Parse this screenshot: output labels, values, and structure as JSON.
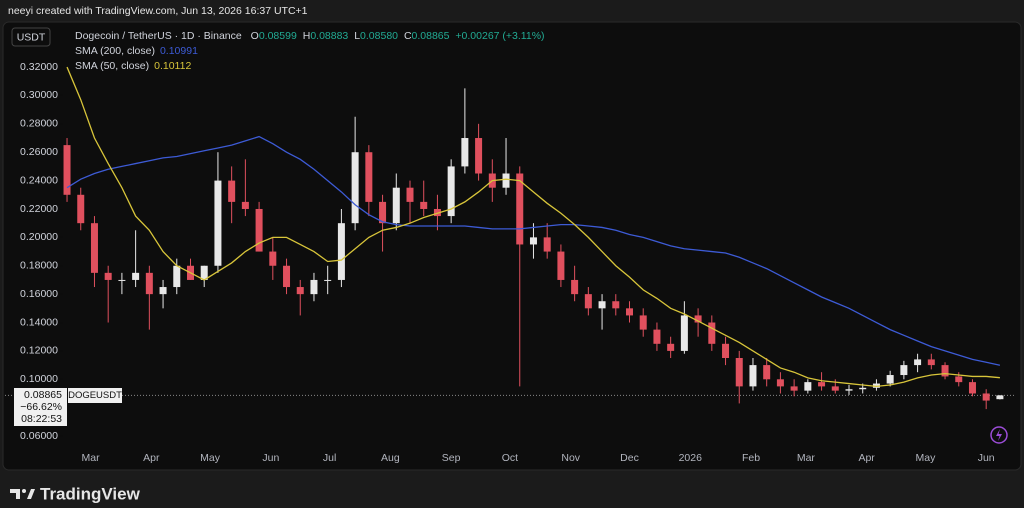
{
  "header": {
    "credit": "neeyi created with TradingView.com, Jun 13, 2026 16:37 UTC+1"
  },
  "logo": "TradingView",
  "chart_data": {
    "type": "candlestick",
    "currency": "USDT",
    "title": "Dogecoin / TetherUS · 1D · Binance",
    "ohlc": [
      {
        "label": "O",
        "value": "0.08599"
      },
      {
        "label": "H",
        "value": "0.08883"
      },
      {
        "label": "L",
        "value": "0.08580"
      },
      {
        "label": "C",
        "value": "0.08865"
      }
    ],
    "change": "+0.00267 (+3.11%)",
    "up_color": "#e8e8e8",
    "down_color": "#e0505e",
    "x": [
      0,
      7,
      14,
      21,
      28,
      35,
      42,
      49,
      56,
      63,
      70,
      77,
      84,
      91,
      98,
      105,
      112,
      119,
      126,
      133,
      140,
      147,
      154,
      161,
      168,
      175,
      182,
      189,
      196,
      203,
      210,
      217,
      224,
      231,
      238,
      245,
      252,
      259,
      266,
      273,
      280,
      287,
      294,
      301,
      308,
      315,
      322,
      329,
      336,
      343,
      350,
      357,
      364,
      371,
      378,
      385,
      392,
      399,
      406,
      413,
      420,
      427,
      434,
      441,
      448,
      455,
      462,
      469,
      476
    ],
    "open": [
      0.265,
      0.23,
      0.21,
      0.175,
      0.17,
      0.17,
      0.175,
      0.16,
      0.165,
      0.18,
      0.17,
      0.18,
      0.24,
      0.225,
      0.22,
      0.19,
      0.18,
      0.165,
      0.16,
      0.17,
      0.17,
      0.21,
      0.26,
      0.225,
      0.21,
      0.235,
      0.225,
      0.22,
      0.215,
      0.25,
      0.27,
      0.245,
      0.235,
      0.245,
      0.195,
      0.2,
      0.19,
      0.17,
      0.16,
      0.15,
      0.155,
      0.15,
      0.145,
      0.135,
      0.125,
      0.12,
      0.145,
      0.14,
      0.125,
      0.115,
      0.095,
      0.11,
      0.1,
      0.095,
      0.092,
      0.098,
      0.095,
      0.092,
      0.093,
      0.094,
      0.097,
      0.103,
      0.11,
      0.114,
      0.11,
      0.102,
      0.098,
      0.09,
      0.08599
    ],
    "high": [
      0.27,
      0.235,
      0.215,
      0.18,
      0.175,
      0.205,
      0.18,
      0.17,
      0.185,
      0.185,
      0.18,
      0.26,
      0.25,
      0.255,
      0.225,
      0.2,
      0.185,
      0.17,
      0.175,
      0.18,
      0.22,
      0.285,
      0.265,
      0.23,
      0.245,
      0.24,
      0.24,
      0.23,
      0.255,
      0.305,
      0.28,
      0.255,
      0.27,
      0.25,
      0.21,
      0.21,
      0.195,
      0.18,
      0.165,
      0.16,
      0.16,
      0.155,
      0.15,
      0.14,
      0.13,
      0.155,
      0.15,
      0.145,
      0.13,
      0.12,
      0.115,
      0.115,
      0.105,
      0.1,
      0.1,
      0.105,
      0.1,
      0.096,
      0.097,
      0.1,
      0.106,
      0.113,
      0.118,
      0.118,
      0.112,
      0.105,
      0.1,
      0.093,
      0.08883
    ],
    "low": [
      0.225,
      0.205,
      0.165,
      0.14,
      0.16,
      0.165,
      0.135,
      0.15,
      0.16,
      0.17,
      0.165,
      0.175,
      0.21,
      0.215,
      0.19,
      0.17,
      0.16,
      0.145,
      0.155,
      0.16,
      0.165,
      0.205,
      0.215,
      0.19,
      0.205,
      0.21,
      0.215,
      0.205,
      0.21,
      0.245,
      0.24,
      0.225,
      0.23,
      0.095,
      0.185,
      0.185,
      0.165,
      0.155,
      0.145,
      0.135,
      0.145,
      0.14,
      0.13,
      0.12,
      0.115,
      0.118,
      0.13,
      0.12,
      0.11,
      0.083,
      0.092,
      0.095,
      0.09,
      0.088,
      0.09,
      0.092,
      0.09,
      0.089,
      0.09,
      0.092,
      0.095,
      0.1,
      0.105,
      0.107,
      0.1,
      0.095,
      0.088,
      0.079,
      0.0858
    ],
    "close": [
      0.23,
      0.21,
      0.175,
      0.17,
      0.17,
      0.175,
      0.16,
      0.165,
      0.18,
      0.17,
      0.18,
      0.24,
      0.225,
      0.22,
      0.19,
      0.18,
      0.165,
      0.16,
      0.17,
      0.17,
      0.21,
      0.26,
      0.225,
      0.21,
      0.235,
      0.225,
      0.22,
      0.215,
      0.25,
      0.27,
      0.245,
      0.235,
      0.245,
      0.195,
      0.2,
      0.19,
      0.17,
      0.16,
      0.15,
      0.155,
      0.15,
      0.145,
      0.135,
      0.125,
      0.12,
      0.145,
      0.14,
      0.125,
      0.115,
      0.095,
      0.11,
      0.1,
      0.095,
      0.092,
      0.098,
      0.095,
      0.092,
      0.093,
      0.094,
      0.097,
      0.103,
      0.11,
      0.114,
      0.11,
      0.102,
      0.098,
      0.09,
      0.085,
      0.08865
    ],
    "series": [
      {
        "name": "SMA (200, close)",
        "color": "#3d5bd6",
        "value_label": "0.10991",
        "values": [
          0.235,
          0.241,
          0.245,
          0.248,
          0.25,
          0.252,
          0.254,
          0.256,
          0.257,
          0.259,
          0.261,
          0.263,
          0.265,
          0.268,
          0.271,
          0.266,
          0.26,
          0.255,
          0.248,
          0.24,
          0.232,
          0.223,
          0.216,
          0.211,
          0.209,
          0.208,
          0.208,
          0.208,
          0.208,
          0.208,
          0.207,
          0.206,
          0.206,
          0.206,
          0.207,
          0.208,
          0.209,
          0.209,
          0.208,
          0.207,
          0.205,
          0.202,
          0.2,
          0.197,
          0.194,
          0.192,
          0.191,
          0.19,
          0.189,
          0.186,
          0.182,
          0.178,
          0.173,
          0.168,
          0.163,
          0.158,
          0.154,
          0.15,
          0.145,
          0.14,
          0.135,
          0.131,
          0.127,
          0.123,
          0.12,
          0.117,
          0.114,
          0.112,
          0.10991
        ]
      },
      {
        "name": "SMA (50, close)",
        "color": "#d8c53a",
        "value_label": "0.10112",
        "values": [
          0.32,
          0.297,
          0.27,
          0.252,
          0.235,
          0.215,
          0.205,
          0.19,
          0.18,
          0.175,
          0.17,
          0.176,
          0.182,
          0.19,
          0.196,
          0.2,
          0.2,
          0.195,
          0.19,
          0.183,
          0.184,
          0.192,
          0.2,
          0.205,
          0.207,
          0.21,
          0.214,
          0.217,
          0.22,
          0.225,
          0.232,
          0.24,
          0.241,
          0.24,
          0.232,
          0.224,
          0.217,
          0.209,
          0.2,
          0.19,
          0.18,
          0.172,
          0.163,
          0.157,
          0.15,
          0.146,
          0.141,
          0.136,
          0.131,
          0.126,
          0.12,
          0.114,
          0.108,
          0.105,
          0.101,
          0.099,
          0.098,
          0.097,
          0.096,
          0.095,
          0.096,
          0.098,
          0.101,
          0.103,
          0.104,
          0.103,
          0.102,
          0.102,
          0.10112
        ]
      }
    ],
    "price_label": {
      "price": "0.08865",
      "symbol": "DOGEUSDT",
      "change": "−66.62%",
      "countdown": "08:22:53"
    },
    "xlim": [
      -34.2,
      483.7
    ],
    "xticks": [
      {
        "value": 12,
        "label": "Mar"
      },
      {
        "value": 43,
        "label": "Apr"
      },
      {
        "value": 73,
        "label": "May"
      },
      {
        "value": 104,
        "label": "Jun"
      },
      {
        "value": 134,
        "label": "Jul"
      },
      {
        "value": 165,
        "label": "Aug"
      },
      {
        "value": 196,
        "label": "Sep"
      },
      {
        "value": 226,
        "label": "Oct"
      },
      {
        "value": 257,
        "label": "Nov"
      },
      {
        "value": 287,
        "label": "Dec"
      },
      {
        "value": 318,
        "label": "2026"
      },
      {
        "value": 349,
        "label": "Feb"
      },
      {
        "value": 377,
        "label": "Mar"
      },
      {
        "value": 408,
        "label": "Apr"
      },
      {
        "value": 438,
        "label": "May"
      },
      {
        "value": 469,
        "label": "Jun"
      }
    ],
    "ylim": [
      0.0537,
      0.3285
    ],
    "yticks": [
      {
        "value": 0.32,
        "label": "0.32000"
      },
      {
        "value": 0.3,
        "label": "0.30000"
      },
      {
        "value": 0.28,
        "label": "0.28000"
      },
      {
        "value": 0.26,
        "label": "0.26000"
      },
      {
        "value": 0.24,
        "label": "0.24000"
      },
      {
        "value": 0.22,
        "label": "0.22000"
      },
      {
        "value": 0.2,
        "label": "0.20000"
      },
      {
        "value": 0.18,
        "label": "0.18000"
      },
      {
        "value": 0.16,
        "label": "0.16000"
      },
      {
        "value": 0.14,
        "label": "0.14000"
      },
      {
        "value": 0.12,
        "label": "0.12000"
      },
      {
        "value": 0.1,
        "label": "0.10000"
      },
      {
        "value": 0.06,
        "label": "0.06000"
      }
    ]
  }
}
